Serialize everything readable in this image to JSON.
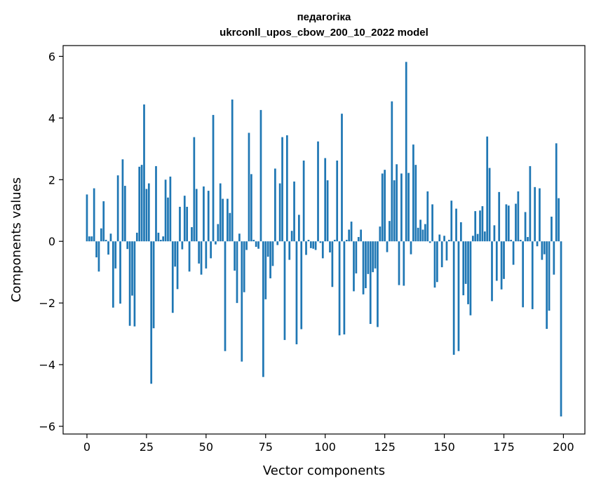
{
  "chart_data": {
    "type": "bar",
    "title": [
      "педагогіка",
      "ukrconll_upos_cbow_200_10_2022 model"
    ],
    "xlabel": "Vector components",
    "ylabel": "Components values",
    "xlim": [
      -10,
      209
    ],
    "ylim": [
      -6.25,
      6.35
    ],
    "xticks": [
      0,
      25,
      50,
      75,
      100,
      125,
      150,
      175,
      200
    ],
    "xtick_labels": [
      "0",
      "25",
      "50",
      "75",
      "100",
      "125",
      "150",
      "175",
      "200"
    ],
    "yticks": [
      -6,
      -4,
      -2,
      0,
      2,
      4,
      6
    ],
    "ytick_labels": [
      "−6",
      "−4",
      "−2",
      "0",
      "2",
      "4",
      "6"
    ],
    "bar_color": "#1f77b4",
    "x": [
      0,
      1,
      2,
      3,
      4,
      5,
      6,
      7,
      8,
      9,
      10,
      11,
      12,
      13,
      14,
      15,
      16,
      17,
      18,
      19,
      20,
      21,
      22,
      23,
      24,
      25,
      26,
      27,
      28,
      29,
      30,
      31,
      32,
      33,
      34,
      35,
      36,
      37,
      38,
      39,
      40,
      41,
      42,
      43,
      44,
      45,
      46,
      47,
      48,
      49,
      50,
      51,
      52,
      53,
      54,
      55,
      56,
      57,
      58,
      59,
      60,
      61,
      62,
      63,
      64,
      65,
      66,
      67,
      68,
      69,
      70,
      71,
      72,
      73,
      74,
      75,
      76,
      77,
      78,
      79,
      80,
      81,
      82,
      83,
      84,
      85,
      86,
      87,
      88,
      89,
      90,
      91,
      92,
      93,
      94,
      95,
      96,
      97,
      98,
      99,
      100,
      101,
      102,
      103,
      104,
      105,
      106,
      107,
      108,
      109,
      110,
      111,
      112,
      113,
      114,
      115,
      116,
      117,
      118,
      119,
      120,
      121,
      122,
      123,
      124,
      125,
      126,
      127,
      128,
      129,
      130,
      131,
      132,
      133,
      134,
      135,
      136,
      137,
      138,
      139,
      140,
      141,
      142,
      143,
      144,
      145,
      146,
      147,
      148,
      149,
      150,
      151,
      152,
      153,
      154,
      155,
      156,
      157,
      158,
      159,
      160,
      161,
      162,
      163,
      164,
      165,
      166,
      167,
      168,
      169,
      170,
      171,
      172,
      173,
      174,
      175,
      176,
      177,
      178,
      179,
      180,
      181,
      182,
      183,
      184,
      185,
      186,
      187,
      188,
      189,
      190,
      191,
      192,
      193,
      194,
      195,
      196,
      197,
      198,
      199
    ],
    "values": [
      1.52,
      0.16,
      0.16,
      1.72,
      -0.52,
      -0.98,
      0.42,
      1.3,
      0.05,
      -0.43,
      0.25,
      -2.15,
      -0.88,
      2.14,
      -2.02,
      2.66,
      1.8,
      -0.25,
      -2.74,
      -1.76,
      -2.76,
      0.28,
      2.42,
      2.48,
      4.44,
      1.7,
      1.88,
      -4.62,
      -2.82,
      2.44,
      0.28,
      0.05,
      0.16,
      2.0,
      1.42,
      2.1,
      -2.32,
      -0.82,
      -1.55,
      1.12,
      -0.26,
      1.48,
      1.12,
      -0.98,
      0.46,
      3.38,
      1.7,
      -0.72,
      -1.08,
      1.78,
      -0.88,
      1.64,
      -0.55,
      4.1,
      -0.1,
      0.56,
      1.88,
      1.38,
      -3.56,
      1.38,
      0.92,
      4.6,
      -0.95,
      -2.0,
      0.25,
      -3.9,
      -1.65,
      -0.28,
      3.52,
      2.18,
      0.05,
      -0.18,
      -0.24,
      4.26,
      -4.4,
      -1.88,
      -0.5,
      -1.2,
      -0.8,
      2.36,
      -0.12,
      1.88,
      3.38,
      -3.2,
      3.44,
      -0.6,
      0.34,
      1.94,
      -3.34,
      0.86,
      -2.85,
      2.62,
      -0.44,
      0.05,
      -0.22,
      -0.24,
      -0.28,
      3.24,
      -0.05,
      -0.55,
      2.7,
      1.98,
      -0.36,
      -1.48,
      0.05,
      2.62,
      -3.05,
      4.14,
      -3.02,
      0.05,
      0.38,
      0.64,
      -1.62,
      -1.04,
      0.14,
      0.38,
      -1.72,
      -1.52,
      -1.06,
      -2.68,
      -1.0,
      -0.88,
      -2.78,
      0.48,
      2.2,
      2.32,
      -0.35,
      0.66,
      4.54,
      1.98,
      2.5,
      -1.42,
      2.2,
      -1.44,
      5.82,
      2.22,
      -0.42,
      3.14,
      2.48,
      0.44,
      0.7,
      0.38,
      0.56,
      1.62,
      -0.05,
      1.2,
      -1.5,
      -1.32,
      0.22,
      -0.84,
      0.18,
      -0.62,
      0.05,
      1.32,
      -3.68,
      1.06,
      -3.56,
      0.62,
      -1.75,
      -1.38,
      -2.04,
      -2.4,
      0.18,
      0.98,
      0.24,
      1.0,
      1.14,
      0.32,
      3.4,
      2.38,
      -1.94,
      0.52,
      -1.28,
      1.6,
      -1.56,
      -1.22,
      1.2,
      1.16,
      0.05,
      -0.76,
      1.22,
      1.62,
      0.05,
      -2.14,
      0.95,
      0.14,
      2.44,
      -2.2,
      1.76,
      -0.16,
      1.72,
      -0.6,
      -0.42,
      -2.84,
      -2.25,
      0.8,
      -1.08,
      3.18,
      1.4,
      -5.68
    ]
  }
}
